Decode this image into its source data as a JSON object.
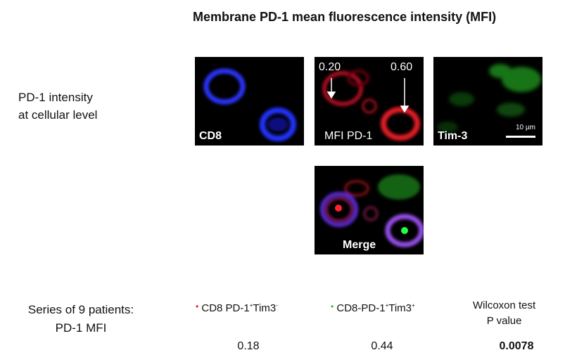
{
  "title": "Membrane PD-1 mean fluorescence intensity (MFI)",
  "left_label": {
    "line1": "PD-1 intensity",
    "line2": "at cellular level"
  },
  "panels": {
    "cd8": {
      "label": "CD8"
    },
    "mfi": {
      "label": "MFI PD-1",
      "value_left": "0.20",
      "value_right": "0.60"
    },
    "tim3": {
      "label": "Tim-3",
      "scale": "10 µm"
    },
    "merge": {
      "label": "Merge"
    }
  },
  "table": {
    "row_label": {
      "line1": "Series of 9 patients:",
      "line2": "PD-1 MFI"
    },
    "col1": {
      "dot_color": "#e0141b",
      "head": "CD8 PD-1",
      "sup_a": "+",
      "mid": "Tim3",
      "sup_b": "-",
      "value": "0.18"
    },
    "col2": {
      "dot_color": "#1ec21e",
      "head": "CD8-PD-1",
      "sup_a": "+",
      "mid": "Tim3",
      "sup_b": "+",
      "value": "0.44"
    },
    "col3": {
      "head_line1": "Wilcoxon test",
      "head_line2": "P value",
      "value": "0.0078"
    }
  }
}
